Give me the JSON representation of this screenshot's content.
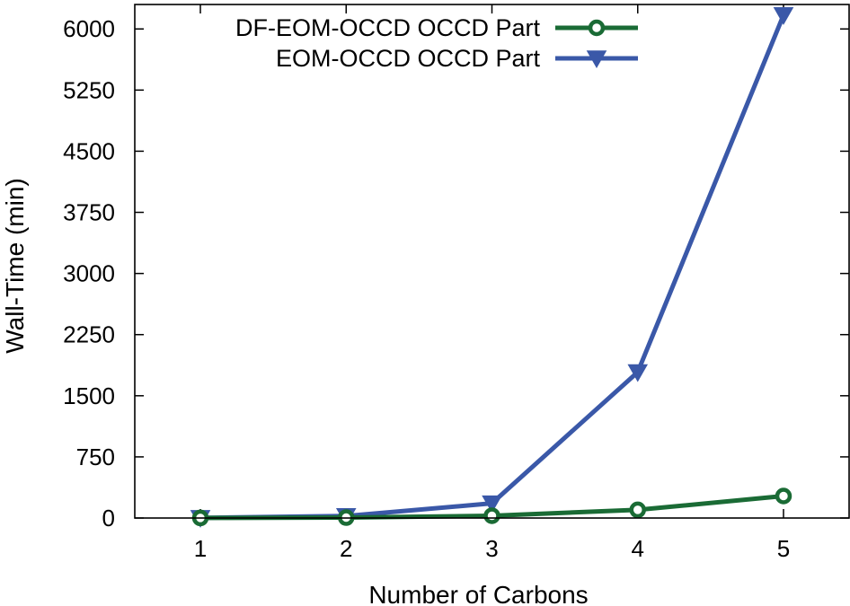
{
  "chart_data": {
    "type": "line",
    "title": "",
    "xlabel": "Number of Carbons",
    "ylabel": "Wall-Time (min)",
    "categories": [
      1,
      2,
      3,
      4,
      5
    ],
    "x_ticks": [
      "1",
      "2",
      "3",
      "4",
      "5"
    ],
    "xlim": [
      0.55,
      5.45
    ],
    "ylim": [
      0,
      6300
    ],
    "y_ticks": [
      "0",
      "750",
      "1500",
      "2250",
      "3000",
      "3750",
      "4500",
      "5250",
      "6000"
    ],
    "y_tick_values": [
      0,
      750,
      1500,
      2250,
      3000,
      3750,
      4500,
      5250,
      6000
    ],
    "grid": false,
    "legend_position": "top-right",
    "series": [
      {
        "name": "DF-EOM-OCCD OCCD Part",
        "marker": "open-circle",
        "color": "#1a6b35",
        "x": [
          1,
          2,
          3,
          4,
          5
        ],
        "values": [
          1,
          5,
          28,
          100,
          270
        ]
      },
      {
        "name": "EOM-OCCD OCCD Part",
        "marker": "down-triangle",
        "color": "#3a58a8",
        "x": [
          1,
          2,
          3,
          4,
          5
        ],
        "values": [
          2,
          25,
          180,
          1790,
          6170
        ]
      }
    ]
  }
}
